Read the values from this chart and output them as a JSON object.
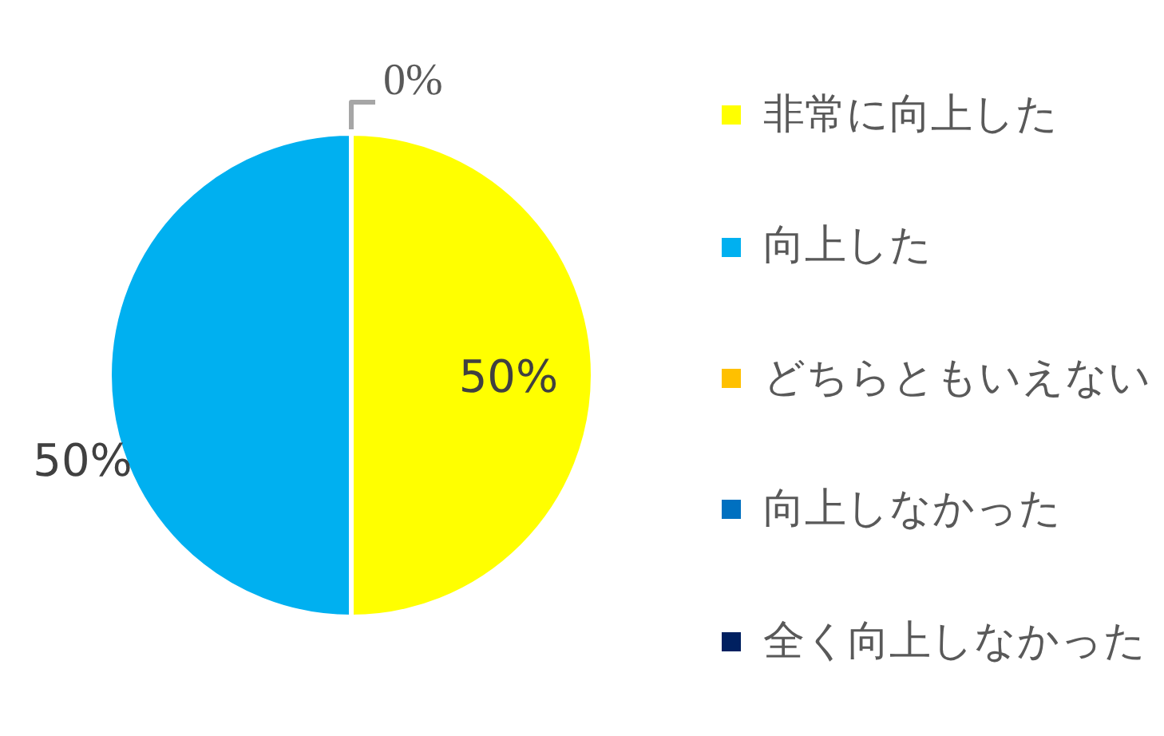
{
  "chart_data": {
    "type": "pie",
    "categories": [
      "非常に向上した",
      "向上した",
      "どちらともいえない",
      "向上しなかった",
      "全く向上しなかった"
    ],
    "values": [
      50,
      50,
      0,
      0,
      0
    ],
    "colors": [
      "#ffff00",
      "#00b0f0",
      "#ffc000",
      "#0070c0",
      "#002060"
    ],
    "value_labels": [
      "50%",
      "50%",
      "0%",
      null,
      null
    ],
    "legend": "right"
  }
}
